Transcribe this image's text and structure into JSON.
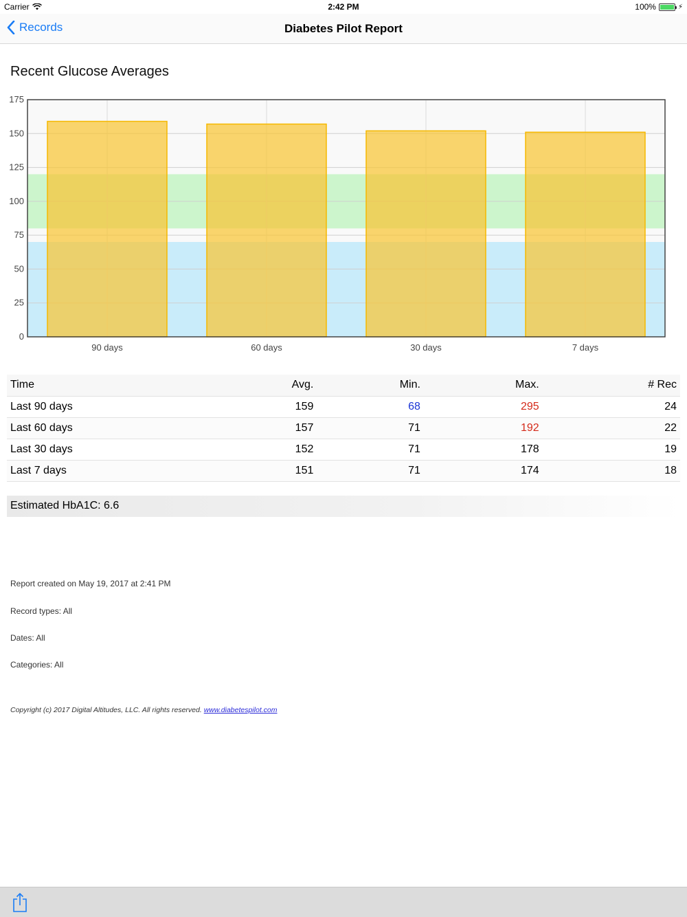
{
  "status_bar": {
    "carrier": "Carrier",
    "time": "2:42 PM",
    "battery": "100%"
  },
  "nav": {
    "back_label": "Records",
    "title": "Diabetes Pilot Report"
  },
  "report": {
    "title": "Recent Glucose Averages",
    "table": {
      "headers": [
        "Time",
        "Avg.",
        "Min.",
        "Max.",
        "# Rec"
      ],
      "rows": [
        {
          "time": "Last 90 days",
          "avg": "159",
          "min": "68",
          "max": "295",
          "rec": "24"
        },
        {
          "time": "Last 60 days",
          "avg": "157",
          "min": "71",
          "max": "192",
          "rec": "22"
        },
        {
          "time": "Last 30 days",
          "avg": "152",
          "min": "71",
          "max": "178",
          "rec": "19"
        },
        {
          "time": "Last 7 days",
          "avg": "151",
          "min": "71",
          "max": "174",
          "rec": "18"
        }
      ]
    },
    "hba1c": "Estimated HbA1C: 6.6",
    "created": "Report created on May 19, 2017 at 2:41 PM",
    "record_types": "Record types: All",
    "dates": "Dates: All",
    "categories": "Categories: All",
    "copyright": "Copyright (c) 2017 Digital Altitudes, LLC. All rights reserved.",
    "link": "www.diabetespilot.com"
  },
  "colors": {
    "accent": "#1a7cf5",
    "bar": "#f8c535",
    "low_value": "#1a35d6",
    "high_value": "#d42a1a",
    "band_low": "#c9ecfa",
    "band_target": "#ccf5cc"
  },
  "chart_data": {
    "type": "bar",
    "categories": [
      "90 days",
      "60 days",
      "30 days",
      "7 days"
    ],
    "values": [
      159,
      157,
      152,
      151
    ],
    "title": "",
    "xlabel": "",
    "ylabel": "",
    "ylim": [
      0,
      175
    ],
    "yticks": [
      0,
      25,
      50,
      75,
      100,
      125,
      150,
      175
    ],
    "bands": [
      {
        "from": 0,
        "to": 70,
        "color": "#c9ecfa"
      },
      {
        "from": 80,
        "to": 120,
        "color": "#ccf5cc"
      }
    ],
    "grid": true,
    "legend": "none"
  },
  "toolbar": {
    "share_icon": "share-icon"
  }
}
